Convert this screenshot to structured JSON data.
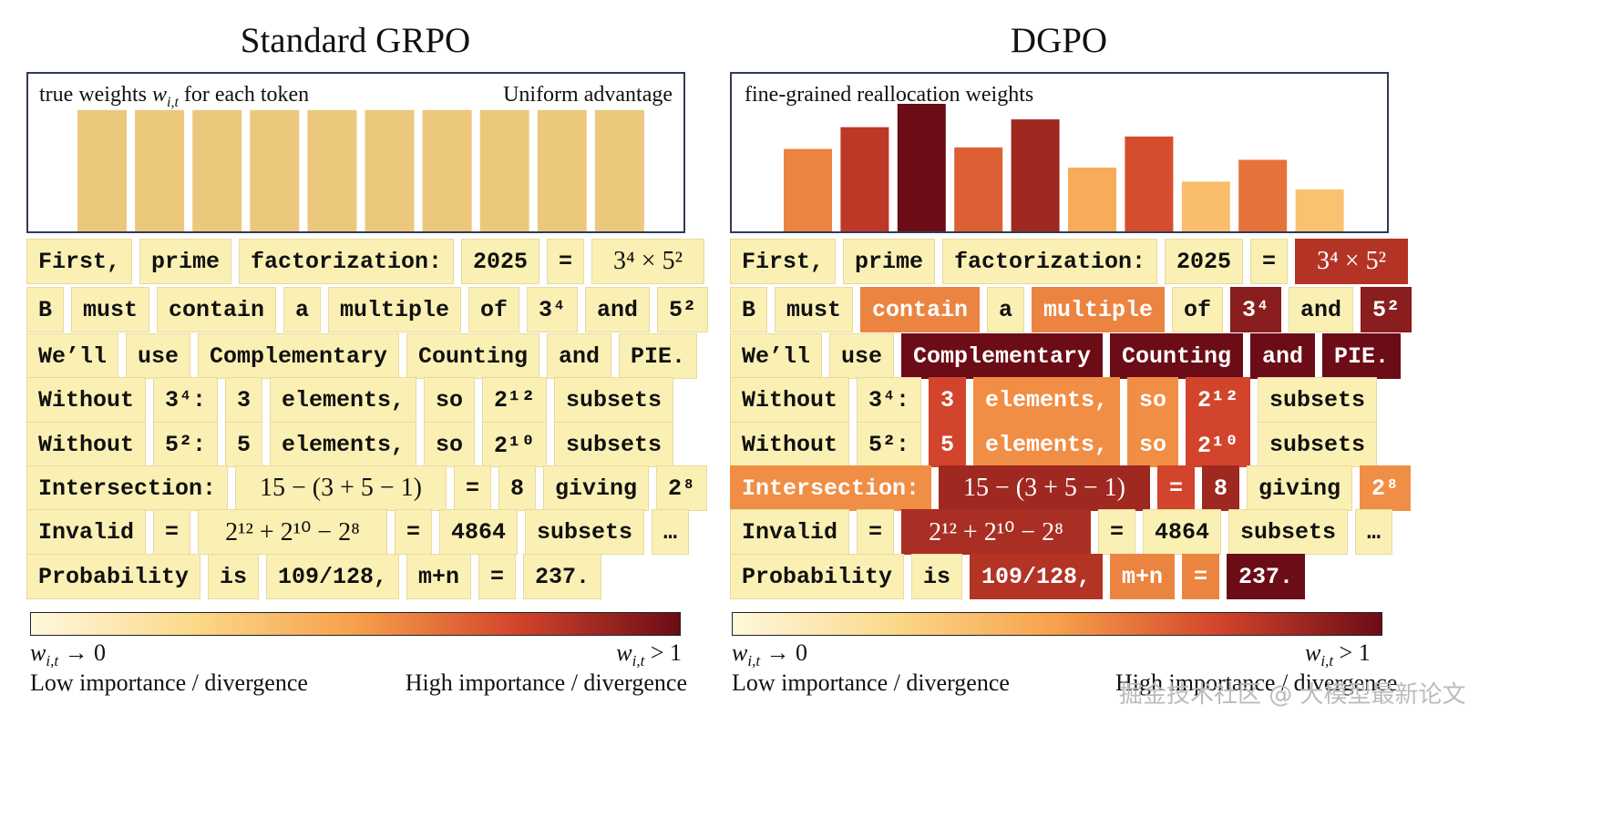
{
  "colors": {
    "uniform_bar": "#ebc87c",
    "scale": [
      "#fff8dc",
      "#fbd98a",
      "#f7a04b",
      "#d2442b",
      "#6b0c17"
    ]
  },
  "panels": [
    {
      "title": "Standard GRPO",
      "chart_label_left": "true weights",
      "chart_label_symbol": "w",
      "chart_label_sub": "i,t",
      "chart_label_left_tail": "for each token",
      "chart_label_right": "Uniform advantage",
      "bars": [
        0.78,
        0.78,
        0.78,
        0.78,
        0.78,
        0.78,
        0.78,
        0.78,
        0.78,
        0.78
      ],
      "bar_levels": [
        0,
        0,
        0,
        0,
        0,
        0,
        0,
        0,
        0,
        0
      ],
      "rows": [
        [
          {
            "t": "First,",
            "l": 0
          },
          {
            "t": "prime",
            "l": 0
          },
          {
            "t": "factorization:",
            "l": 0
          },
          {
            "t": "2025",
            "l": 0
          },
          {
            "t": "=",
            "l": 0
          },
          {
            "t": "3⁴ × 5²",
            "l": 0,
            "m": 1
          }
        ],
        [
          {
            "t": "B",
            "l": 0
          },
          {
            "t": "must",
            "l": 0
          },
          {
            "t": "contain",
            "l": 0
          },
          {
            "t": "a",
            "l": 0
          },
          {
            "t": "multiple",
            "l": 0
          },
          {
            "t": "of",
            "l": 0
          },
          {
            "t": "3⁴",
            "l": 0
          },
          {
            "t": "and",
            "l": 0
          },
          {
            "t": "5²",
            "l": 0
          }
        ],
        [
          {
            "t": "We’ll",
            "l": 0
          },
          {
            "t": "use",
            "l": 0
          },
          {
            "t": "Complementary",
            "l": 0
          },
          {
            "t": "Counting",
            "l": 0
          },
          {
            "t": "and",
            "l": 0
          },
          {
            "t": "PIE.",
            "l": 0
          }
        ],
        [
          {
            "t": "Without",
            "l": 0
          },
          {
            "t": "3⁴:",
            "l": 0
          },
          {
            "t": "3",
            "l": 0
          },
          {
            "t": "elements,",
            "l": 0
          },
          {
            "t": "so",
            "l": 0
          },
          {
            "t": "2¹²",
            "l": 0
          },
          {
            "t": "subsets",
            "l": 0
          }
        ],
        [
          {
            "t": "Without",
            "l": 0
          },
          {
            "t": "5²:",
            "l": 0
          },
          {
            "t": "5",
            "l": 0
          },
          {
            "t": "elements,",
            "l": 0
          },
          {
            "t": "so",
            "l": 0
          },
          {
            "t": "2¹⁰",
            "l": 0
          },
          {
            "t": "subsets",
            "l": 0
          }
        ],
        [
          {
            "t": "Intersection:",
            "l": 0
          },
          {
            "t": "15 − (3 + 5 − 1)",
            "l": 0,
            "m": 1
          },
          {
            "t": "=",
            "l": 0
          },
          {
            "t": "8",
            "l": 0
          },
          {
            "t": "giving",
            "l": 0
          },
          {
            "t": "2⁸",
            "l": 0
          }
        ],
        [
          {
            "t": "Invalid",
            "l": 0
          },
          {
            "t": "=",
            "l": 0
          },
          {
            "t": "2¹² + 2¹⁰ − 2⁸",
            "l": 0,
            "m": 1
          },
          {
            "t": "=",
            "l": 0
          },
          {
            "t": "4864",
            "l": 0
          },
          {
            "t": "subsets",
            "l": 0
          },
          {
            "t": "…",
            "l": 0
          }
        ],
        [
          {
            "t": "Probability",
            "l": 0
          },
          {
            "t": "is",
            "l": 0
          },
          {
            "t": "109/128,",
            "l": 0
          },
          {
            "t": "m+n",
            "l": 0
          },
          {
            "t": "=",
            "l": 0
          },
          {
            "t": "237.",
            "l": 0
          }
        ]
      ],
      "cb_left_arrow": "→ 0",
      "cb_right_op": "> 1",
      "cb_low": "Low importance / divergence",
      "cb_high": "High importance / divergence"
    },
    {
      "title": "DGPO",
      "chart_label_left": "fine-grained reallocation weights",
      "chart_label_right": "",
      "bars": [
        0.53,
        0.67,
        0.82,
        0.54,
        0.72,
        0.41,
        0.61,
        0.32,
        0.46,
        0.27
      ],
      "bar_levels": [
        2.3,
        3.2,
        4.5,
        2.7,
        3.5,
        1.8,
        2.9,
        1.5,
        2.5,
        1.4
      ],
      "rows": [
        [
          {
            "t": "First,",
            "l": 0
          },
          {
            "t": "prime",
            "l": 0
          },
          {
            "t": "factorization:",
            "l": 0
          },
          {
            "t": "2025",
            "l": 0
          },
          {
            "t": "=",
            "l": 0
          },
          {
            "t": "3⁴ × 5²",
            "l": 3.3,
            "m": 1
          }
        ],
        [
          {
            "t": "B",
            "l": 0
          },
          {
            "t": "must",
            "l": 0
          },
          {
            "t": "contain",
            "l": 2.3
          },
          {
            "t": "a",
            "l": 0
          },
          {
            "t": "multiple",
            "l": 2.3
          },
          {
            "t": "of",
            "l": 0
          },
          {
            "t": "3⁴",
            "l": 3.7
          },
          {
            "t": "and",
            "l": 0
          },
          {
            "t": "5²",
            "l": 3.7
          }
        ],
        [
          {
            "t": "We’ll",
            "l": 0
          },
          {
            "t": "use",
            "l": 0
          },
          {
            "t": "Complementary",
            "l": 4.4
          },
          {
            "t": "Counting",
            "l": 4.4
          },
          {
            "t": "and",
            "l": 4.4
          },
          {
            "t": "PIE.",
            "l": 4.4
          }
        ],
        [
          {
            "t": "Without",
            "l": 0
          },
          {
            "t": "3⁴:",
            "l": 0
          },
          {
            "t": "3",
            "l": 3.0
          },
          {
            "t": "elements,",
            "l": 2.2
          },
          {
            "t": "so",
            "l": 2.2
          },
          {
            "t": "2¹²",
            "l": 3.0
          },
          {
            "t": "subsets",
            "l": 0
          }
        ],
        [
          {
            "t": "Without",
            "l": 0
          },
          {
            "t": "5²:",
            "l": 0
          },
          {
            "t": "5",
            "l": 3.0
          },
          {
            "t": "elements,",
            "l": 2.2
          },
          {
            "t": "so",
            "l": 2.2
          },
          {
            "t": "2¹⁰",
            "l": 3.0
          },
          {
            "t": "subsets",
            "l": 0
          }
        ],
        [
          {
            "t": "Intersection:",
            "l": 2.2
          },
          {
            "t": "15 − (3 + 5 − 1)",
            "l": 3.5,
            "m": 1
          },
          {
            "t": "=",
            "l": 3.0
          },
          {
            "t": "8",
            "l": 3.5
          },
          {
            "t": "giving",
            "l": 0
          },
          {
            "t": "2⁸",
            "l": 2.2
          }
        ],
        [
          {
            "t": "Invalid",
            "l": 0
          },
          {
            "t": "=",
            "l": 0
          },
          {
            "t": "2¹² + 2¹⁰ − 2⁸",
            "l": 3.4,
            "m": 1
          },
          {
            "t": "=",
            "l": 0
          },
          {
            "t": "4864",
            "l": 0
          },
          {
            "t": "subsets",
            "l": 0
          },
          {
            "t": "…",
            "l": 0
          }
        ],
        [
          {
            "t": "Probability",
            "l": 0
          },
          {
            "t": "is",
            "l": 0
          },
          {
            "t": "109/128,",
            "l": 3.3
          },
          {
            "t": "m+n",
            "l": 2.3
          },
          {
            "t": "=",
            "l": 2.3
          },
          {
            "t": "237.",
            "l": 4.2
          }
        ]
      ],
      "cb_left_arrow": "→ 0",
      "cb_right_op": "> 1",
      "cb_low": "Low importance / divergence",
      "cb_high": "High importance / divergence"
    }
  ],
  "watermark": "掘金技术社区 @ 大模型最新论文"
}
